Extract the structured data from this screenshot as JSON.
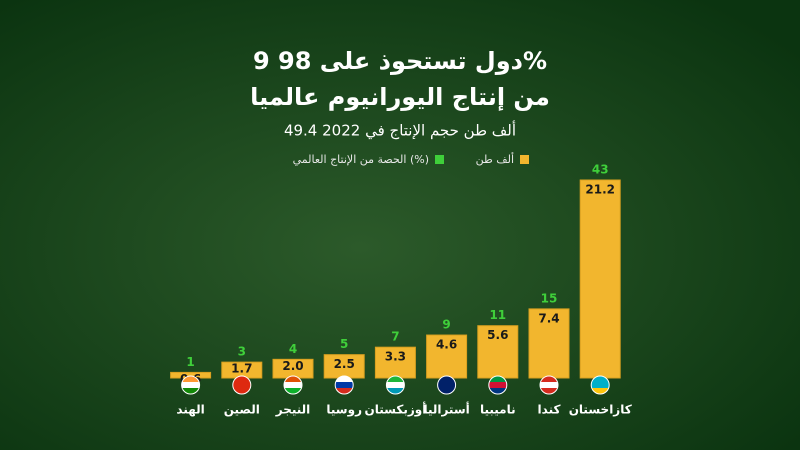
{
  "chart_data": {
    "type": "bar",
    "title": [
      "9 دول تستحوذ على 98%",
      "من إنتاج اليورانيوم عالميا"
    ],
    "subtitle": "49.4 ألف طن حجم الإنتاج في 2022",
    "categories": [
      "الهند",
      "الصين",
      "النيجر",
      "روسيا",
      "أوزبكستان",
      "أستراليا",
      "ناميبيا",
      "كندا",
      "كازاخستان"
    ],
    "series": [
      {
        "name": "ألف طن",
        "color": "#f2b62e",
        "values": [
          0.6,
          1.7,
          2.0,
          2.5,
          3.3,
          4.6,
          5.6,
          7.4,
          21.2
        ],
        "value_labels": [
          "0.6",
          "1.7",
          "2.0",
          "2.5",
          "3.3",
          "4.6",
          "5.6",
          "7.4",
          "21.2"
        ]
      },
      {
        "name": "الحصة من الإنتاج العالمي (%)",
        "color": "#3fcf3a",
        "values": [
          1,
          3,
          4,
          5,
          7,
          9,
          11,
          15,
          43
        ]
      }
    ]
  }
}
